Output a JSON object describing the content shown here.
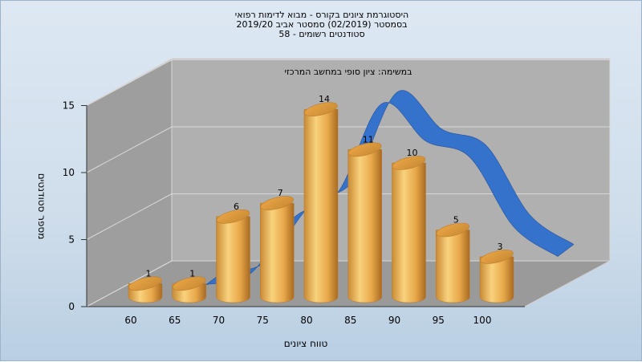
{
  "title": {
    "line1": "היסטוגרמת ציונים בקורס - מבוא לדימות רפואי",
    "line2": "בסמסטר (02/2019) סמסטר אביב 2019/20",
    "line3": "סטודנטים רשומים - 58"
  },
  "colors": {
    "bar": "#e8a84a",
    "bar_light": "#f9d27d",
    "bar_dark": "#b9772a",
    "curve": "#2f6fcd",
    "wall": "#a9a9a9",
    "floor": "#9c9c9c"
  },
  "chart_data": {
    "type": "bar",
    "title": "היסטוגרמת ציונים בקורס - מבוא לדימות רפואי",
    "subtitle": "במשימה: ציון סופי במחשב המרכזי",
    "xlabel": "טווח ציונים",
    "ylabel": "מספר סטודנטים",
    "categories": [
      "60",
      "65",
      "70",
      "75",
      "80",
      "85",
      "90",
      "95",
      "100"
    ],
    "values": [
      1,
      1,
      6,
      7,
      14,
      11,
      10,
      5,
      3
    ],
    "yticks": [
      "0",
      "5",
      "10",
      "15"
    ],
    "ylim": [
      0,
      15
    ],
    "grid": true,
    "curve": {
      "type": "smoothed-area-ribbon",
      "x": [
        67.5,
        72.5,
        77.5,
        82.5,
        87.5,
        92.5,
        97.5,
        102.5,
        107.5
      ],
      "y": [
        0.7,
        1.5,
        5.7,
        7.6,
        14.2,
        11.4,
        10.2,
        5.0,
        2.8
      ]
    }
  }
}
